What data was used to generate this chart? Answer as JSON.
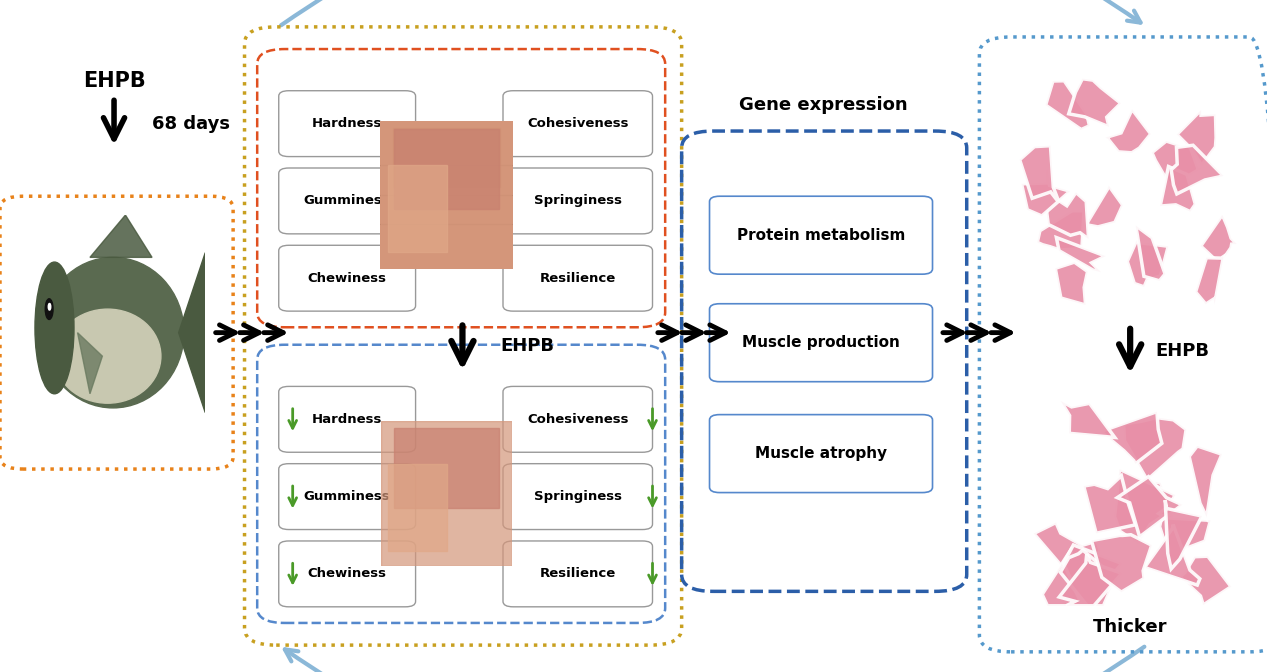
{
  "bg_color": "#ffffff",
  "arrow_color_blue": "#8BB8D8",
  "green_down_color": "#4A9A28",
  "orange_box_color": "#E8821A",
  "golden_box_color": "#C8A020",
  "orange_inner_color": "#E05020",
  "blue_inner_color": "#5588CC",
  "gene_box_color": "#2B5EA8",
  "muscle_box_color": "#5599CC",
  "texture_labels_left": [
    "Hardness",
    "Gumminess",
    "Chewiness"
  ],
  "texture_labels_right": [
    "Cohesiveness",
    "Springiness",
    "Resilience"
  ],
  "gene_labels": [
    "Protein metabolism",
    "Muscle production",
    "Muscle atrophy"
  ],
  "gene_title": "Gene expression",
  "thicker_label": "Thicker",
  "ehpb_label": "EHPB",
  "days_label": "68 days"
}
